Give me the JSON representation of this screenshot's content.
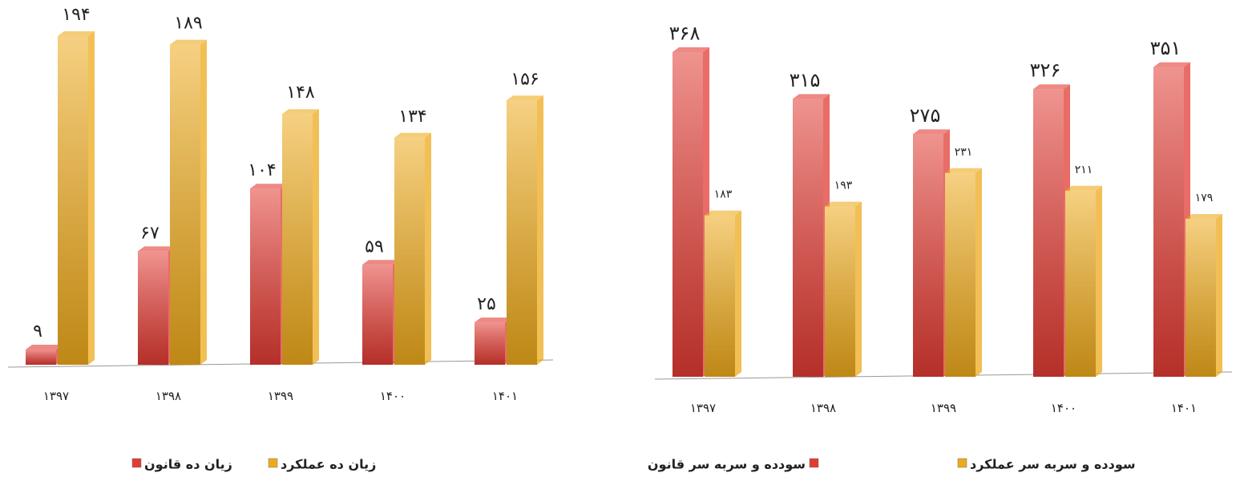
{
  "chart_data": [
    {
      "type": "bar",
      "categories": [
        "۱۳۹۷",
        "۱۳۹۸",
        "۱۳۹۹",
        "۱۴۰۰",
        "۱۴۰۱"
      ],
      "series": [
        {
          "name": "زیان ده قانون",
          "color": "#e23b33",
          "values": [
            9,
            67,
            104,
            59,
            25
          ],
          "value_labels": [
            "۹",
            "۶۷",
            "۱۰۴",
            "۵۹",
            "۲۵"
          ]
        },
        {
          "name": "زیان ده عملکرد",
          "color": "#eeaa1c",
          "values": [
            194,
            189,
            148,
            134,
            156
          ],
          "value_labels": [
            "۱۹۴",
            "۱۸۹",
            "۱۴۸",
            "۱۳۴",
            "۱۵۶"
          ]
        }
      ]
    },
    {
      "type": "bar",
      "categories": [
        "۱۳۹۷",
        "۱۳۹۸",
        "۱۳۹۹",
        "۱۴۰۰",
        "۱۴۰۱"
      ],
      "series": [
        {
          "name": "سودده و سربه سر قانون",
          "color": "#e23b33",
          "values": [
            368,
            315,
            275,
            326,
            351
          ],
          "value_labels": [
            "۳۶۸",
            "۳۱۵",
            "۲۷۵",
            "۳۲۶",
            "۳۵۱"
          ]
        },
        {
          "name": "سودده و سربه سر عملکرد",
          "color": "#eeaa1c",
          "values": [
            183,
            193,
            231,
            211,
            179
          ],
          "value_labels": [
            "۱۸۳",
            "۱۹۳",
            "۲۳۱",
            "۲۱۱",
            "۱۷۹"
          ]
        }
      ]
    }
  ]
}
